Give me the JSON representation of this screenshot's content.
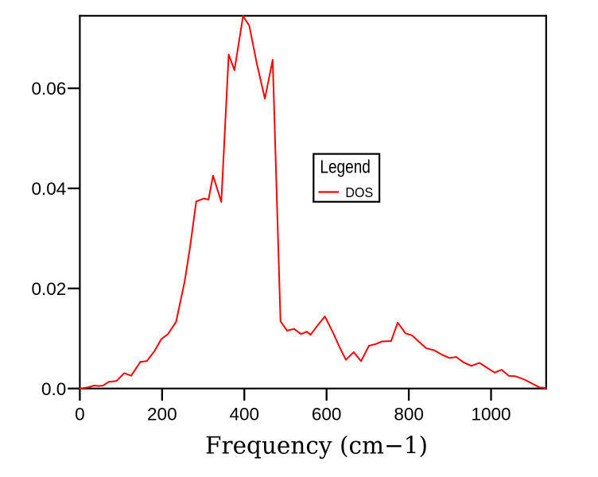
{
  "chart_data": {
    "type": "line",
    "title": "",
    "xlabel": "Frequency (cm−1)",
    "ylabel": "",
    "xlim": [
      0,
      1134
    ],
    "ylim": [
      0,
      0.0745
    ],
    "grid": false,
    "xticks": {
      "values": [
        0,
        200,
        400,
        600,
        800,
        1000
      ],
      "labels": [
        "0",
        "200",
        "400",
        "600",
        "800",
        "1000"
      ]
    },
    "yticks": {
      "values": [
        0,
        0.02,
        0.04,
        0.06
      ],
      "labels": [
        "0.0",
        "0.02",
        "0.04",
        "0.06"
      ]
    },
    "legend": {
      "title": "Legend",
      "position": "center",
      "entries": [
        {
          "label": "DOS",
          "color": "#ff0000"
        }
      ]
    },
    "series": [
      {
        "name": "DOS",
        "color": "#ff0000",
        "x": [
          0,
          19,
          35,
          45,
          56,
          70,
          89,
          108,
          125,
          147,
          163,
          182,
          198,
          214,
          234,
          255,
          268,
          283,
          301,
          313,
          324,
          344,
          362,
          376,
          397,
          412,
          430,
          450,
          469,
          488,
          504,
          521,
          538,
          552,
          561,
          578,
          596,
          615,
          631,
          647,
          666,
          684,
          703,
          720,
          735,
          757,
          773,
          792,
          808,
          825,
          842,
          862,
          882,
          899,
          915,
          933,
          952,
          972,
          990,
          1009,
          1026,
          1043,
          1059,
          1074,
          1085,
          1095,
          1118,
          1127,
          1134
        ],
        "y": [
          0.0,
          0.00021,
          0.00059,
          0.00051,
          0.00056,
          0.00132,
          0.00151,
          0.00307,
          0.00256,
          0.00531,
          0.0055,
          0.00753,
          0.00987,
          0.01084,
          0.0133,
          0.02143,
          0.02823,
          0.03737,
          0.03796,
          0.03777,
          0.04256,
          0.03729,
          0.06676,
          0.06363,
          0.07445,
          0.07253,
          0.06509,
          0.05794,
          0.0657,
          0.01343,
          0.01157,
          0.01192,
          0.01088,
          0.01136,
          0.01074,
          0.01258,
          0.01441,
          0.01131,
          0.00837,
          0.00574,
          0.00726,
          0.00548,
          0.00853,
          0.0089,
          0.00941,
          0.00949,
          0.01317,
          0.01103,
          0.01061,
          0.00933,
          0.00807,
          0.00763,
          0.00669,
          0.0061,
          0.00631,
          0.00524,
          0.00453,
          0.00512,
          0.00416,
          0.00318,
          0.00375,
          0.00254,
          0.00245,
          0.00202,
          0.00164,
          0.00121,
          0.00022,
          0.00017,
          6e-05
        ]
      }
    ]
  },
  "colors": {
    "background": "#ffffff",
    "axis": "#000000",
    "text": "#000000",
    "series_dos": "#ff0000"
  }
}
